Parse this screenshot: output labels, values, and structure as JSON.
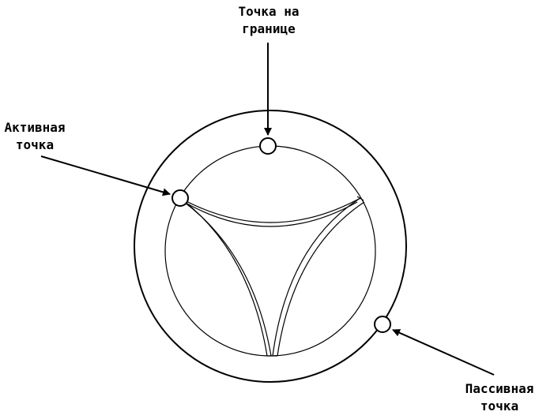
{
  "diagram": {
    "labels": {
      "boundary_point": [
        "Точка на",
        "границе"
      ],
      "active_point": [
        "Активная",
        "точка"
      ],
      "passive_point": [
        "Пассивная",
        "точка"
      ]
    },
    "colors": {
      "stroke": "#000000",
      "fill": "#ffffff",
      "background": "#ffffff"
    }
  }
}
